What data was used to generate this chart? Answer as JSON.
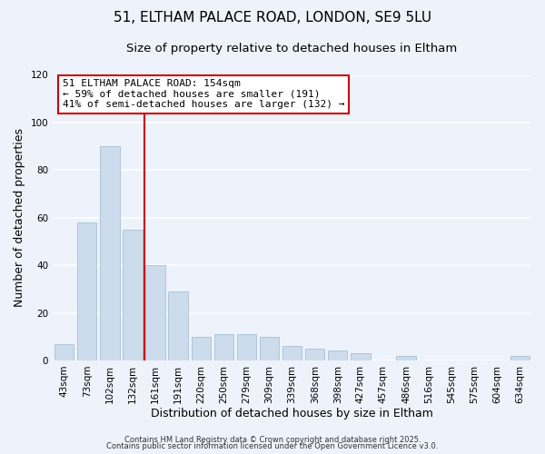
{
  "title": "51, ELTHAM PALACE ROAD, LONDON, SE9 5LU",
  "subtitle": "Size of property relative to detached houses in Eltham",
  "xlabel": "Distribution of detached houses by size in Eltham",
  "ylabel": "Number of detached properties",
  "categories": [
    "43sqm",
    "73sqm",
    "102sqm",
    "132sqm",
    "161sqm",
    "191sqm",
    "220sqm",
    "250sqm",
    "279sqm",
    "309sqm",
    "339sqm",
    "368sqm",
    "398sqm",
    "427sqm",
    "457sqm",
    "486sqm",
    "516sqm",
    "545sqm",
    "575sqm",
    "604sqm",
    "634sqm"
  ],
  "values": [
    7,
    58,
    90,
    55,
    40,
    29,
    10,
    11,
    11,
    10,
    6,
    5,
    4,
    3,
    0,
    2,
    0,
    0,
    0,
    0,
    2
  ],
  "bar_color": "#ccdcec",
  "bar_edge_color": "#a8c0d4",
  "vline_color": "#cc0000",
  "vline_x": 3.5,
  "ylim": [
    0,
    120
  ],
  "annotation_title": "51 ELTHAM PALACE ROAD: 154sqm",
  "annotation_line1": "← 59% of detached houses are smaller (191)",
  "annotation_line2": "41% of semi-detached houses are larger (132) →",
  "annotation_box_facecolor": "#ffffff",
  "annotation_box_edgecolor": "#cc0000",
  "footer1": "Contains HM Land Registry data © Crown copyright and database right 2025.",
  "footer2": "Contains public sector information licensed under the Open Government Licence v3.0.",
  "background_color": "#eef2fa",
  "plot_bg_color": "#eef2fa",
  "grid_color": "#ffffff",
  "title_fontsize": 11,
  "subtitle_fontsize": 9.5,
  "tick_fontsize": 7.5,
  "axis_label_fontsize": 9,
  "annotation_fontsize": 8,
  "footer_fontsize": 6
}
